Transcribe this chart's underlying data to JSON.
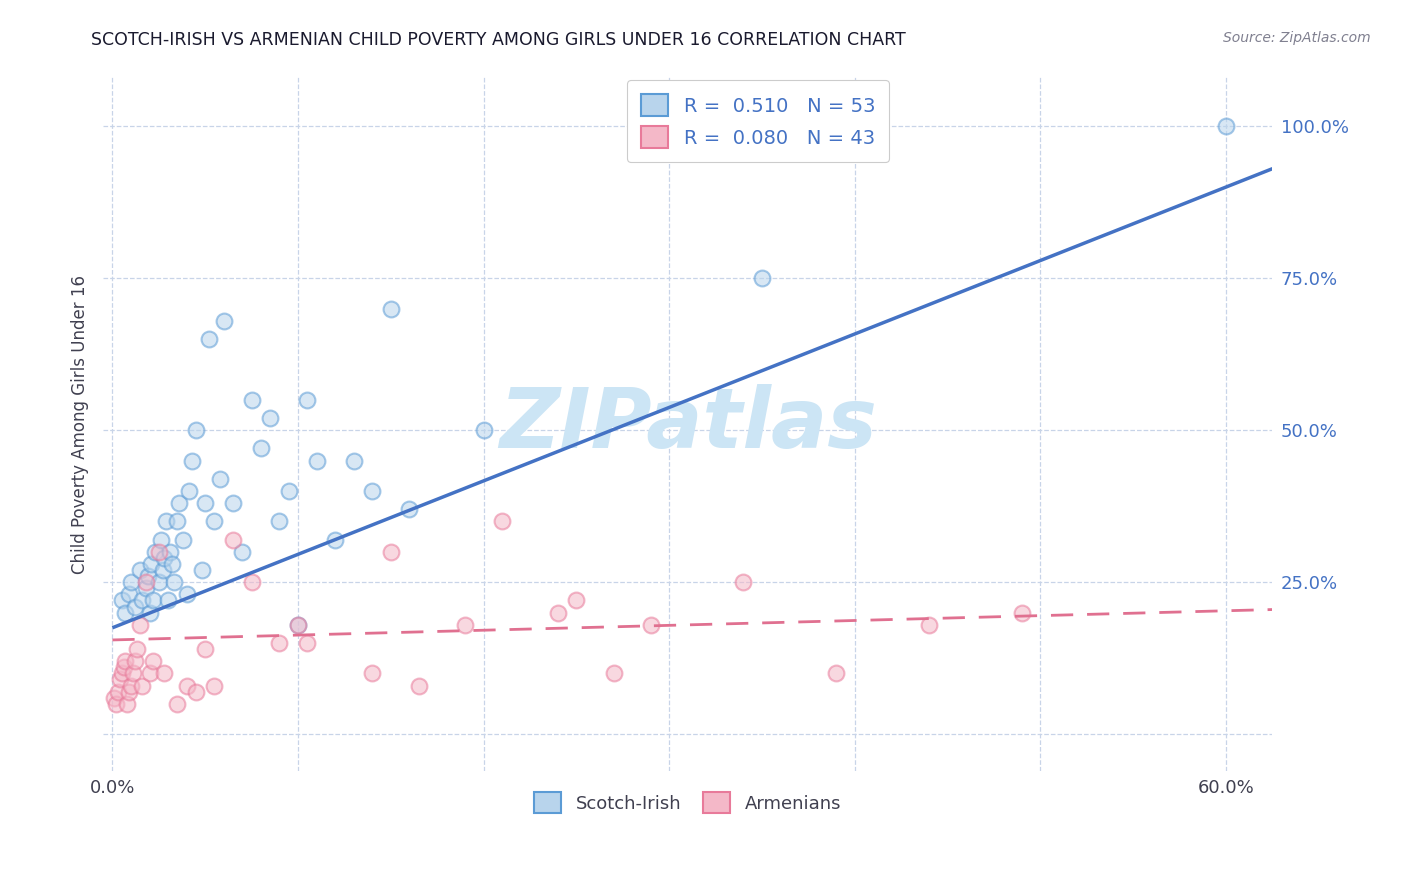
{
  "title": "SCOTCH-IRISH VS ARMENIAN CHILD POVERTY AMONG GIRLS UNDER 16 CORRELATION CHART",
  "source": "Source: ZipAtlas.com",
  "ylabel": "Child Poverty Among Girls Under 16",
  "xlim": [
    -0.005,
    0.625
  ],
  "ylim": [
    -0.06,
    1.08
  ],
  "blue_r": 0.51,
  "blue_n": 53,
  "pink_r": 0.08,
  "pink_n": 43,
  "blue_dot_color": "#b8d4ec",
  "blue_edge_color": "#5b9bd5",
  "blue_line_color": "#4472c4",
  "pink_dot_color": "#f4b8c8",
  "pink_edge_color": "#e87a9a",
  "pink_line_color": "#e07090",
  "watermark": "ZIPatlas",
  "watermark_color": "#cce5f5",
  "legend_label_blue": "Scotch-Irish",
  "legend_label_pink": "Armenians",
  "scotch_irish_x": [
    0.005,
    0.007,
    0.009,
    0.01,
    0.012,
    0.015,
    0.016,
    0.018,
    0.019,
    0.02,
    0.021,
    0.022,
    0.023,
    0.025,
    0.026,
    0.027,
    0.028,
    0.029,
    0.03,
    0.031,
    0.032,
    0.033,
    0.035,
    0.036,
    0.038,
    0.04,
    0.041,
    0.043,
    0.045,
    0.048,
    0.05,
    0.052,
    0.055,
    0.058,
    0.06,
    0.065,
    0.07,
    0.075,
    0.08,
    0.085,
    0.09,
    0.095,
    0.1,
    0.105,
    0.11,
    0.12,
    0.13,
    0.14,
    0.15,
    0.16,
    0.2,
    0.35,
    0.6
  ],
  "scotch_irish_y": [
    0.22,
    0.2,
    0.23,
    0.25,
    0.21,
    0.27,
    0.22,
    0.24,
    0.26,
    0.2,
    0.28,
    0.22,
    0.3,
    0.25,
    0.32,
    0.27,
    0.29,
    0.35,
    0.22,
    0.3,
    0.28,
    0.25,
    0.35,
    0.38,
    0.32,
    0.23,
    0.4,
    0.45,
    0.5,
    0.27,
    0.38,
    0.65,
    0.35,
    0.42,
    0.68,
    0.38,
    0.3,
    0.55,
    0.47,
    0.52,
    0.35,
    0.4,
    0.18,
    0.55,
    0.45,
    0.32,
    0.45,
    0.4,
    0.7,
    0.37,
    0.5,
    0.75,
    1.0
  ],
  "armenian_x": [
    0.001,
    0.002,
    0.003,
    0.004,
    0.005,
    0.006,
    0.007,
    0.008,
    0.009,
    0.01,
    0.011,
    0.012,
    0.013,
    0.015,
    0.016,
    0.018,
    0.02,
    0.022,
    0.025,
    0.028,
    0.035,
    0.04,
    0.045,
    0.05,
    0.055,
    0.065,
    0.075,
    0.09,
    0.1,
    0.105,
    0.14,
    0.15,
    0.165,
    0.19,
    0.21,
    0.24,
    0.25,
    0.27,
    0.29,
    0.34,
    0.39,
    0.44,
    0.49
  ],
  "armenian_y": [
    0.06,
    0.05,
    0.07,
    0.09,
    0.1,
    0.11,
    0.12,
    0.05,
    0.07,
    0.08,
    0.1,
    0.12,
    0.14,
    0.18,
    0.08,
    0.25,
    0.1,
    0.12,
    0.3,
    0.1,
    0.05,
    0.08,
    0.07,
    0.14,
    0.08,
    0.32,
    0.25,
    0.15,
    0.18,
    0.15,
    0.1,
    0.3,
    0.08,
    0.18,
    0.35,
    0.2,
    0.22,
    0.1,
    0.18,
    0.25,
    0.1,
    0.18,
    0.2
  ],
  "blue_line_x0": 0.0,
  "blue_line_x1": 0.625,
  "blue_line_y0": 0.175,
  "blue_line_y1": 0.93,
  "pink_line_x0": 0.0,
  "pink_line_x1": 0.625,
  "pink_line_y0": 0.155,
  "pink_line_y1": 0.205,
  "grid_color": "#c8d4e8",
  "bg_color": "#ffffff",
  "title_color": "#1a1a2e",
  "source_color": "#808090",
  "axis_label_color": "#404050",
  "tick_color_right": "#4472c4",
  "dot_size": 130,
  "dot_alpha": 0.55,
  "dot_linewidth": 1.5
}
